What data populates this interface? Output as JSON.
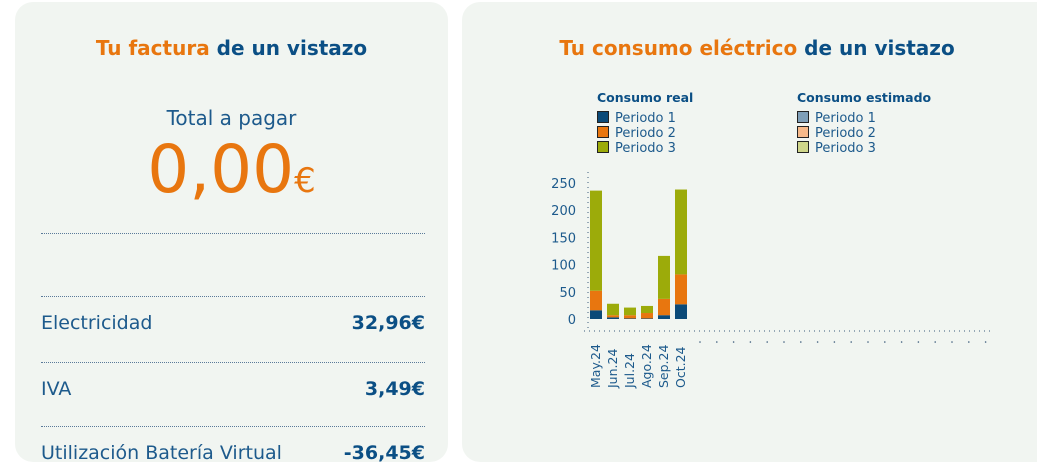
{
  "bill": {
    "title_highlight": "Tu factura",
    "title_rest": " de un vistazo",
    "total_label": "Total a pagar",
    "total_value": "0,00",
    "currency": "€",
    "lines": [
      {
        "label": "Electricidad",
        "value": "32,96€"
      },
      {
        "label": "IVA",
        "value": "3,49€"
      },
      {
        "label": "Utilización Batería Virtual",
        "value": "-36,45€"
      }
    ]
  },
  "consumption": {
    "title_highlight": "Tu consumo eléctrico",
    "title_rest": " de un vistazo",
    "legend": {
      "real": {
        "title": "Consumo real",
        "items": [
          "Periodo 1",
          "Periodo 2",
          "Periodo 3"
        ],
        "colors": [
          "#0b4a78",
          "#e8760f",
          "#9cab0a"
        ]
      },
      "estimated": {
        "title": "Consumo estimado",
        "items": [
          "Periodo 1",
          "Periodo 2",
          "Periodo 3"
        ],
        "colors": [
          "#7f9fb8",
          "#f6b98a",
          "#cfd68a"
        ]
      }
    }
  },
  "chart_data": {
    "type": "bar",
    "stacked": true,
    "categories": [
      "May.24",
      "Jun.24",
      "Jul.24",
      "Ago.24",
      "Sep.24",
      "Oct.24"
    ],
    "series": [
      {
        "name": "Periodo 1",
        "values": [
          16,
          3,
          1,
          1,
          7,
          27
        ]
      },
      {
        "name": "Periodo 2",
        "values": [
          36,
          4,
          6,
          10,
          30,
          55
        ]
      },
      {
        "name": "Periodo 3",
        "values": [
          184,
          21,
          14,
          13,
          79,
          156
        ]
      }
    ],
    "yticks": [
      0,
      50,
      100,
      150,
      200,
      250
    ],
    "ylim": [
      0,
      250
    ],
    "empty_slots": 18
  }
}
